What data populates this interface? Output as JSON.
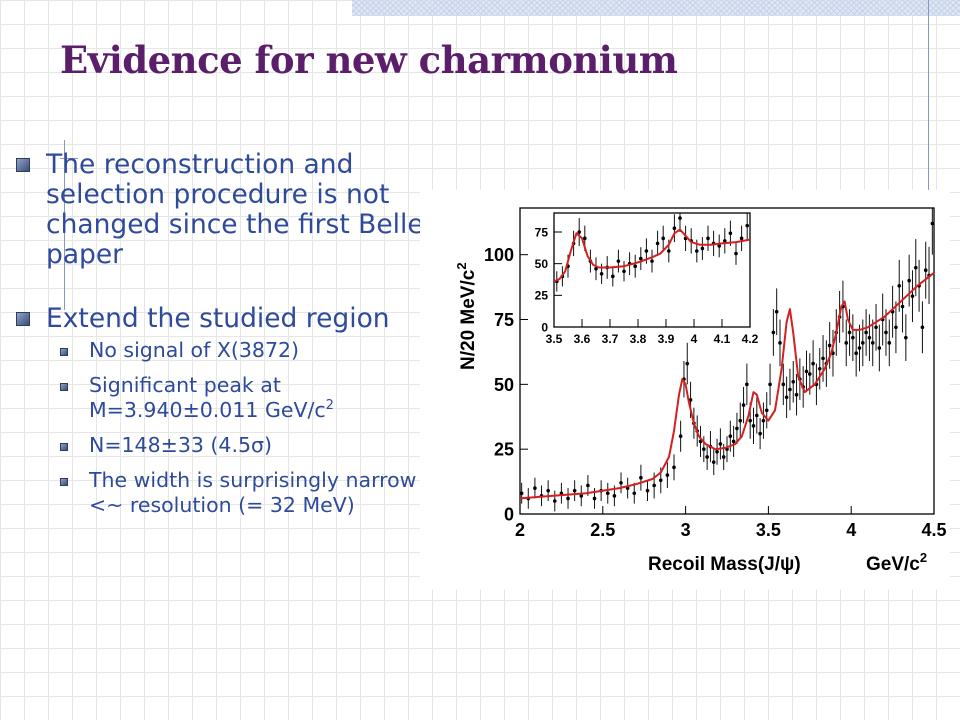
{
  "slide": {
    "title": "Evidence for new charmonium",
    "bullets": [
      {
        "text": "The reconstruction and selection procedure is not changed since the first Belle paper"
      },
      {
        "text": "Extend the studied region"
      }
    ],
    "sub_bullets": [
      {
        "text": "No signal of X(3872)"
      },
      {
        "pre": "Significant peak at M=3.940",
        "sym": "±",
        "post": "0.011 GeV/c",
        "sup": "2"
      },
      {
        "pre": "N=148",
        "sym": "±",
        "mid": "33 (4.5",
        "sigma": "σ",
        "post": ")"
      },
      {
        "text": "The width is surprisingly narrow <~ resolution (= 32 MeV)"
      }
    ]
  },
  "chart_data": [
    {
      "type": "line",
      "title": "",
      "xlabel": "Recoil Mass(J/ψ)",
      "xunit": "GeV/c",
      "xunit_sup": "2",
      "ylabel": "N/20 MeV/c",
      "ylabel_sup": "2",
      "xlim": [
        2.0,
        4.5
      ],
      "ylim": [
        0,
        118
      ],
      "xticks": [
        2,
        2.5,
        3,
        3.5,
        4,
        4.5
      ],
      "xtick_labels": [
        "2",
        "2.5",
        "3",
        "3.5",
        "4",
        "4.5"
      ],
      "yticks": [
        0,
        25,
        50,
        75,
        100
      ],
      "ytick_labels": [
        "0",
        "25",
        "50",
        "75",
        "100"
      ],
      "fit_color": "#d42020",
      "series": [
        {
          "style": "points-with-errors",
          "x": [
            2.01,
            2.05,
            2.09,
            2.13,
            2.17,
            2.21,
            2.25,
            2.29,
            2.33,
            2.37,
            2.41,
            2.45,
            2.49,
            2.53,
            2.57,
            2.61,
            2.65,
            2.69,
            2.73,
            2.77,
            2.81,
            2.85,
            2.89,
            2.93,
            2.97,
            2.99,
            3.01,
            3.03,
            3.05,
            3.07,
            3.09,
            3.11,
            3.13,
            3.15,
            3.17,
            3.19,
            3.21,
            3.23,
            3.25,
            3.27,
            3.29,
            3.31,
            3.33,
            3.35,
            3.37,
            3.39,
            3.41,
            3.43,
            3.45,
            3.47,
            3.49,
            3.51,
            3.53,
            3.55,
            3.57,
            3.59,
            3.61,
            3.63,
            3.65,
            3.67,
            3.69,
            3.71,
            3.73,
            3.75,
            3.77,
            3.79,
            3.81,
            3.83,
            3.85,
            3.87,
            3.89,
            3.91,
            3.93,
            3.95,
            3.97,
            3.99,
            4.01,
            4.03,
            4.05,
            4.07,
            4.09,
            4.11,
            4.13,
            4.15,
            4.17,
            4.19,
            4.21,
            4.23,
            4.25,
            4.27,
            4.29,
            4.31,
            4.33,
            4.35,
            4.37,
            4.39,
            4.41,
            4.43,
            4.45,
            4.47,
            4.49
          ],
          "y": [
            8,
            6,
            10,
            7,
            9,
            5,
            8,
            6,
            9,
            7,
            11,
            6,
            9,
            8,
            7,
            12,
            10,
            8,
            14,
            9,
            11,
            13,
            15,
            18,
            30,
            52,
            58,
            44,
            35,
            32,
            28,
            25,
            22,
            26,
            20,
            24,
            27,
            22,
            25,
            30,
            28,
            33,
            36,
            42,
            50,
            36,
            34,
            38,
            31,
            36,
            40,
            50,
            70,
            78,
            66,
            50,
            45,
            48,
            51,
            46,
            52,
            49,
            55,
            54,
            58,
            50,
            56,
            60,
            58,
            65,
            62,
            70,
            76,
            80,
            66,
            70,
            68,
            62,
            64,
            66,
            70,
            68,
            66,
            72,
            64,
            75,
            70,
            66,
            78,
            72,
            88,
            80,
            68,
            90,
            84,
            95,
            88,
            72,
            94,
            92,
            112
          ],
          "yerr": [
            4,
            4,
            4,
            4,
            4,
            4,
            4,
            4,
            4,
            4,
            4,
            4,
            4,
            4,
            4,
            4,
            4,
            4,
            5,
            4,
            5,
            5,
            5,
            5,
            6,
            7,
            8,
            7,
            6,
            6,
            6,
            5,
            5,
            6,
            5,
            5,
            6,
            5,
            5,
            6,
            6,
            6,
            7,
            7,
            8,
            7,
            7,
            7,
            6,
            7,
            7,
            8,
            9,
            9,
            9,
            8,
            8,
            8,
            8,
            8,
            8,
            8,
            8,
            8,
            9,
            8,
            8,
            9,
            9,
            9,
            9,
            9,
            10,
            10,
            9,
            9,
            9,
            9,
            9,
            9,
            9,
            9,
            9,
            9,
            9,
            10,
            9,
            9,
            10,
            10,
            10,
            10,
            9,
            10,
            10,
            11,
            10,
            10,
            11,
            11,
            12
          ]
        },
        {
          "style": "fit",
          "x": [
            2.0,
            2.2,
            2.4,
            2.6,
            2.7,
            2.8,
            2.85,
            2.9,
            2.93,
            2.96,
            2.98,
            3.0,
            3.02,
            3.05,
            3.08,
            3.12,
            3.18,
            3.24,
            3.3,
            3.34,
            3.38,
            3.41,
            3.43,
            3.46,
            3.5,
            3.54,
            3.58,
            3.61,
            3.63,
            3.65,
            3.68,
            3.72,
            3.78,
            3.84,
            3.88,
            3.91,
            3.94,
            3.96,
            3.98,
            4.01,
            4.05,
            4.1,
            4.2,
            4.3,
            4.4,
            4.5
          ],
          "y": [
            6,
            7,
            8,
            10,
            11.5,
            13.5,
            16,
            22,
            32,
            46,
            52,
            50,
            43,
            35,
            30,
            27,
            25,
            25.5,
            27,
            30,
            38,
            47,
            46,
            39,
            36,
            40,
            56,
            74,
            79,
            70,
            53,
            47,
            50,
            56,
            62,
            70,
            80,
            82,
            75,
            71,
            71,
            72,
            76,
            82,
            88,
            93
          ]
        }
      ]
    },
    {
      "type": "line",
      "title": "",
      "xlabel": "",
      "ylabel": "",
      "xlim": [
        3.5,
        4.2
      ],
      "ylim": [
        0,
        90
      ],
      "xticks": [
        3.5,
        3.6,
        3.7,
        3.8,
        3.9,
        4.0,
        4.1,
        4.2
      ],
      "xtick_labels": [
        "3.5",
        "3.6",
        "3.7",
        "3.8",
        "3.9",
        "4",
        "4.1",
        "4.2"
      ],
      "yticks": [
        0,
        25,
        50,
        75
      ],
      "ytick_labels": [
        "0",
        "25",
        "50",
        "75"
      ],
      "series": [
        {
          "style": "points-with-errors",
          "x": [
            3.51,
            3.53,
            3.55,
            3.57,
            3.59,
            3.61,
            3.63,
            3.65,
            3.67,
            3.69,
            3.71,
            3.73,
            3.75,
            3.77,
            3.79,
            3.81,
            3.83,
            3.85,
            3.87,
            3.89,
            3.91,
            3.93,
            3.95,
            3.97,
            3.99,
            4.01,
            4.03,
            4.05,
            4.07,
            4.09,
            4.11,
            4.13,
            4.15,
            4.17,
            4.19
          ],
          "y": [
            36,
            40,
            48,
            66,
            75,
            70,
            52,
            46,
            42,
            47,
            40,
            52,
            44,
            50,
            48,
            54,
            60,
            52,
            66,
            70,
            60,
            78,
            86,
            70,
            68,
            60,
            62,
            70,
            66,
            64,
            68,
            74,
            58,
            70,
            80
          ],
          "yerr": [
            8,
            8,
            9,
            10,
            11,
            10,
            9,
            9,
            8,
            9,
            8,
            9,
            8,
            9,
            9,
            9,
            10,
            9,
            10,
            10,
            9,
            11,
            11,
            10,
            10,
            9,
            9,
            10,
            10,
            9,
            10,
            10,
            9,
            10,
            11
          ]
        },
        {
          "style": "fit",
          "x": [
            3.5,
            3.52,
            3.54,
            3.56,
            3.58,
            3.6,
            3.62,
            3.64,
            3.66,
            3.7,
            3.75,
            3.8,
            3.85,
            3.88,
            3.91,
            3.93,
            3.95,
            3.97,
            3.99,
            4.02,
            4.06,
            4.1,
            4.15,
            4.2
          ],
          "y": [
            36,
            38,
            44,
            60,
            74,
            70,
            56,
            49,
            47,
            47,
            48,
            51,
            55,
            58,
            65,
            74,
            77,
            72,
            67,
            65,
            65,
            66,
            67,
            69
          ]
        }
      ]
    }
  ]
}
